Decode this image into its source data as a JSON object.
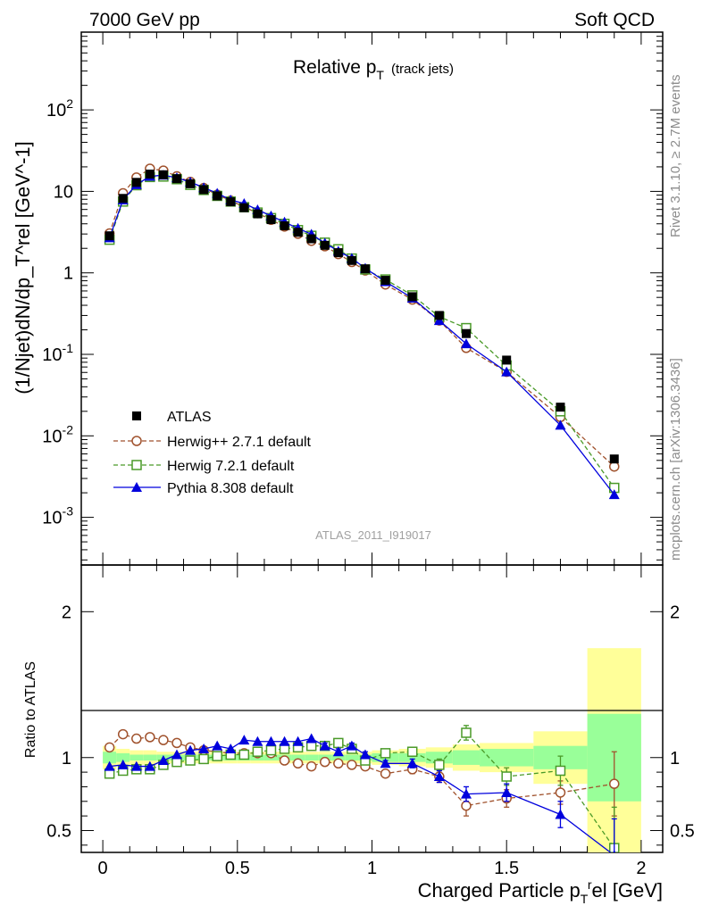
{
  "header": {
    "left": "7000 GeV pp",
    "right": "Soft QCD",
    "side_top": "Rivet 3.1.10, ≥ 2.7M events",
    "side_bottom": "mcplots.cern.ch [arXiv:1306.3436]",
    "reference": "ATLAS_2011_I919017"
  },
  "chart_data": [
    {
      "type": "scatter",
      "panel": "main",
      "title": "Relative p_T (track jets)",
      "title_main": "Relative p",
      "title_sub": "T",
      "title_extra": "(track jets)",
      "ylabel": "(1/Njet)dN/dp_T^rel [GeV^-1]",
      "yscale": "log",
      "xlim": [
        -0.08,
        2.08
      ],
      "ylim": [
        0.00026,
        900
      ],
      "ytick_labels": [
        "10^-3",
        "10^-2",
        "10^-1",
        "1",
        "10",
        "10^2"
      ],
      "x": [
        0.025,
        0.075,
        0.125,
        0.175,
        0.225,
        0.275,
        0.325,
        0.375,
        0.425,
        0.475,
        0.525,
        0.575,
        0.625,
        0.675,
        0.725,
        0.775,
        0.825,
        0.875,
        0.925,
        0.975,
        1.05,
        1.15,
        1.25,
        1.35,
        1.5,
        1.7,
        1.9
      ],
      "series": [
        {
          "name": "ATLAS",
          "color": "#000000",
          "marker": "filled-square",
          "values": [
            2.85,
            8.2,
            12.9,
            16.3,
            16.0,
            14.3,
            12.4,
            10.5,
            8.8,
            7.45,
            6.3,
            5.3,
            4.5,
            3.78,
            3.15,
            2.62,
            2.18,
            1.77,
            1.42,
            1.12,
            0.81,
            0.51,
            0.3,
            0.18,
            0.085,
            0.0225,
            0.0052
          ]
        },
        {
          "name": "Herwig++ 2.7.1 default",
          "color": "#a0522d",
          "marker": "open-circle",
          "values": [
            3.05,
            9.5,
            14.8,
            19.0,
            18.0,
            15.3,
            13.1,
            11.0,
            9.1,
            7.7,
            6.45,
            5.4,
            4.48,
            3.7,
            3.02,
            2.47,
            2.12,
            1.7,
            1.36,
            1.07,
            0.72,
            0.47,
            0.26,
            0.12,
            0.061,
            0.017,
            0.0042
          ]
        },
        {
          "name": "Herwig 7.2.1 default",
          "color": "#4a9a28",
          "marker": "open-square",
          "values": [
            2.55,
            7.5,
            11.9,
            15.0,
            15.2,
            14.1,
            12.0,
            10.4,
            8.8,
            7.5,
            6.4,
            5.5,
            4.7,
            4.0,
            3.35,
            2.85,
            2.35,
            1.95,
            1.5,
            1.1,
            0.83,
            0.53,
            0.29,
            0.21,
            0.073,
            0.02,
            0.0023
          ]
        },
        {
          "name": "Pythia 8.308 default",
          "color": "#0000dd",
          "marker": "filled-triangle",
          "values": [
            2.7,
            7.85,
            12.1,
            15.3,
            15.8,
            14.7,
            13.0,
            11.1,
            9.5,
            7.85,
            7.1,
            5.95,
            5.0,
            4.2,
            3.52,
            2.98,
            2.32,
            1.85,
            1.51,
            1.14,
            0.78,
            0.49,
            0.26,
            0.135,
            0.061,
            0.0135,
            0.0019
          ]
        }
      ]
    },
    {
      "type": "scatter",
      "panel": "ratio",
      "ylabel": "Ratio to ATLAS",
      "xlabel": "Charged Particle p_T^rel [GeV]",
      "xlabel_main": "Charged Particle p",
      "xlabel_sub": "T",
      "xlabel_sup": "r",
      "xlabel_tail": "el [GeV]",
      "xlim": [
        -0.08,
        2.08
      ],
      "ylim": [
        0.35,
        2.32
      ],
      "xticks": [
        "0",
        "0.5",
        "1",
        "1.5",
        "2"
      ],
      "yticks": [
        "0.5",
        "1",
        "2"
      ],
      "x": [
        0.025,
        0.075,
        0.125,
        0.175,
        0.225,
        0.275,
        0.325,
        0.375,
        0.425,
        0.475,
        0.525,
        0.575,
        0.625,
        0.675,
        0.725,
        0.775,
        0.825,
        0.875,
        0.925,
        0.975,
        1.05,
        1.15,
        1.25,
        1.35,
        1.5,
        1.7,
        1.9
      ],
      "bins": [
        0.0,
        0.05,
        0.1,
        0.15,
        0.2,
        0.25,
        0.3,
        0.35,
        0.4,
        0.45,
        0.5,
        0.55,
        0.6,
        0.65,
        0.7,
        0.75,
        0.8,
        0.85,
        0.9,
        0.95,
        1.0,
        1.1,
        1.2,
        1.3,
        1.4,
        1.6,
        1.8,
        2.0
      ],
      "band_stat": [
        0.04,
        0.03,
        0.02,
        0.02,
        0.02,
        0.02,
        0.02,
        0.02,
        0.02,
        0.02,
        0.02,
        0.02,
        0.02,
        0.02,
        0.02,
        0.02,
        0.02,
        0.02,
        0.02,
        0.02,
        0.03,
        0.03,
        0.04,
        0.05,
        0.06,
        0.08,
        0.3
      ],
      "band_total": [
        0.08,
        0.06,
        0.05,
        0.05,
        0.04,
        0.04,
        0.04,
        0.04,
        0.04,
        0.04,
        0.04,
        0.04,
        0.04,
        0.04,
        0.04,
        0.04,
        0.04,
        0.04,
        0.04,
        0.04,
        0.05,
        0.06,
        0.07,
        0.09,
        0.1,
        0.18,
        0.75
      ],
      "band_colors": {
        "stat": "#99ff99",
        "total": "#ffff99"
      },
      "series": [
        {
          "name": "Herwig++ 2.7.1 default",
          "color": "#a0522d",
          "marker": "open-circle",
          "values": [
            1.07,
            1.16,
            1.13,
            1.14,
            1.12,
            1.1,
            1.07,
            1.05,
            1.04,
            1.03,
            1.03,
            1.03,
            1.03,
            0.98,
            0.96,
            0.94,
            0.97,
            0.96,
            0.95,
            0.94,
            0.89,
            0.92,
            0.87,
            0.67,
            0.72,
            0.76,
            0.82
          ],
          "errors": [
            0.01,
            0.01,
            0.01,
            0.01,
            0.01,
            0.01,
            0.01,
            0.01,
            0.01,
            0.01,
            0.01,
            0.01,
            0.01,
            0.01,
            0.01,
            0.01,
            0.01,
            0.02,
            0.02,
            0.02,
            0.02,
            0.03,
            0.04,
            0.07,
            0.06,
            0.08,
            0.22
          ]
        },
        {
          "name": "Herwig 7.2.1 default",
          "color": "#4a9a28",
          "marker": "open-square",
          "values": [
            0.89,
            0.91,
            0.92,
            0.92,
            0.95,
            0.97,
            0.98,
            0.99,
            1.01,
            1.02,
            1.02,
            1.04,
            1.05,
            1.06,
            1.07,
            1.08,
            1.08,
            1.1,
            1.06,
            0.98,
            1.03,
            1.04,
            0.95,
            1.17,
            0.87,
            0.91,
            0.38
          ],
          "errors": [
            0.01,
            0.01,
            0.01,
            0.01,
            0.01,
            0.01,
            0.01,
            0.01,
            0.01,
            0.01,
            0.01,
            0.01,
            0.01,
            0.01,
            0.01,
            0.01,
            0.01,
            0.02,
            0.02,
            0.02,
            0.02,
            0.03,
            0.04,
            0.05,
            0.06,
            0.1,
            0.28
          ]
        },
        {
          "name": "Pythia 8.308 default",
          "color": "#0000dd",
          "marker": "filled-triangle",
          "values": [
            0.94,
            0.95,
            0.94,
            0.94,
            0.98,
            1.02,
            1.05,
            1.06,
            1.08,
            1.06,
            1.12,
            1.11,
            1.11,
            1.11,
            1.11,
            1.13,
            1.08,
            1.04,
            1.08,
            1.02,
            0.96,
            0.96,
            0.87,
            0.75,
            0.76,
            0.61,
            0.33
          ],
          "errors": [
            0.01,
            0.01,
            0.01,
            0.01,
            0.01,
            0.01,
            0.01,
            0.01,
            0.01,
            0.01,
            0.01,
            0.01,
            0.01,
            0.01,
            0.01,
            0.01,
            0.02,
            0.02,
            0.02,
            0.02,
            0.02,
            0.03,
            0.04,
            0.05,
            0.06,
            0.09,
            0.25
          ]
        }
      ]
    }
  ]
}
